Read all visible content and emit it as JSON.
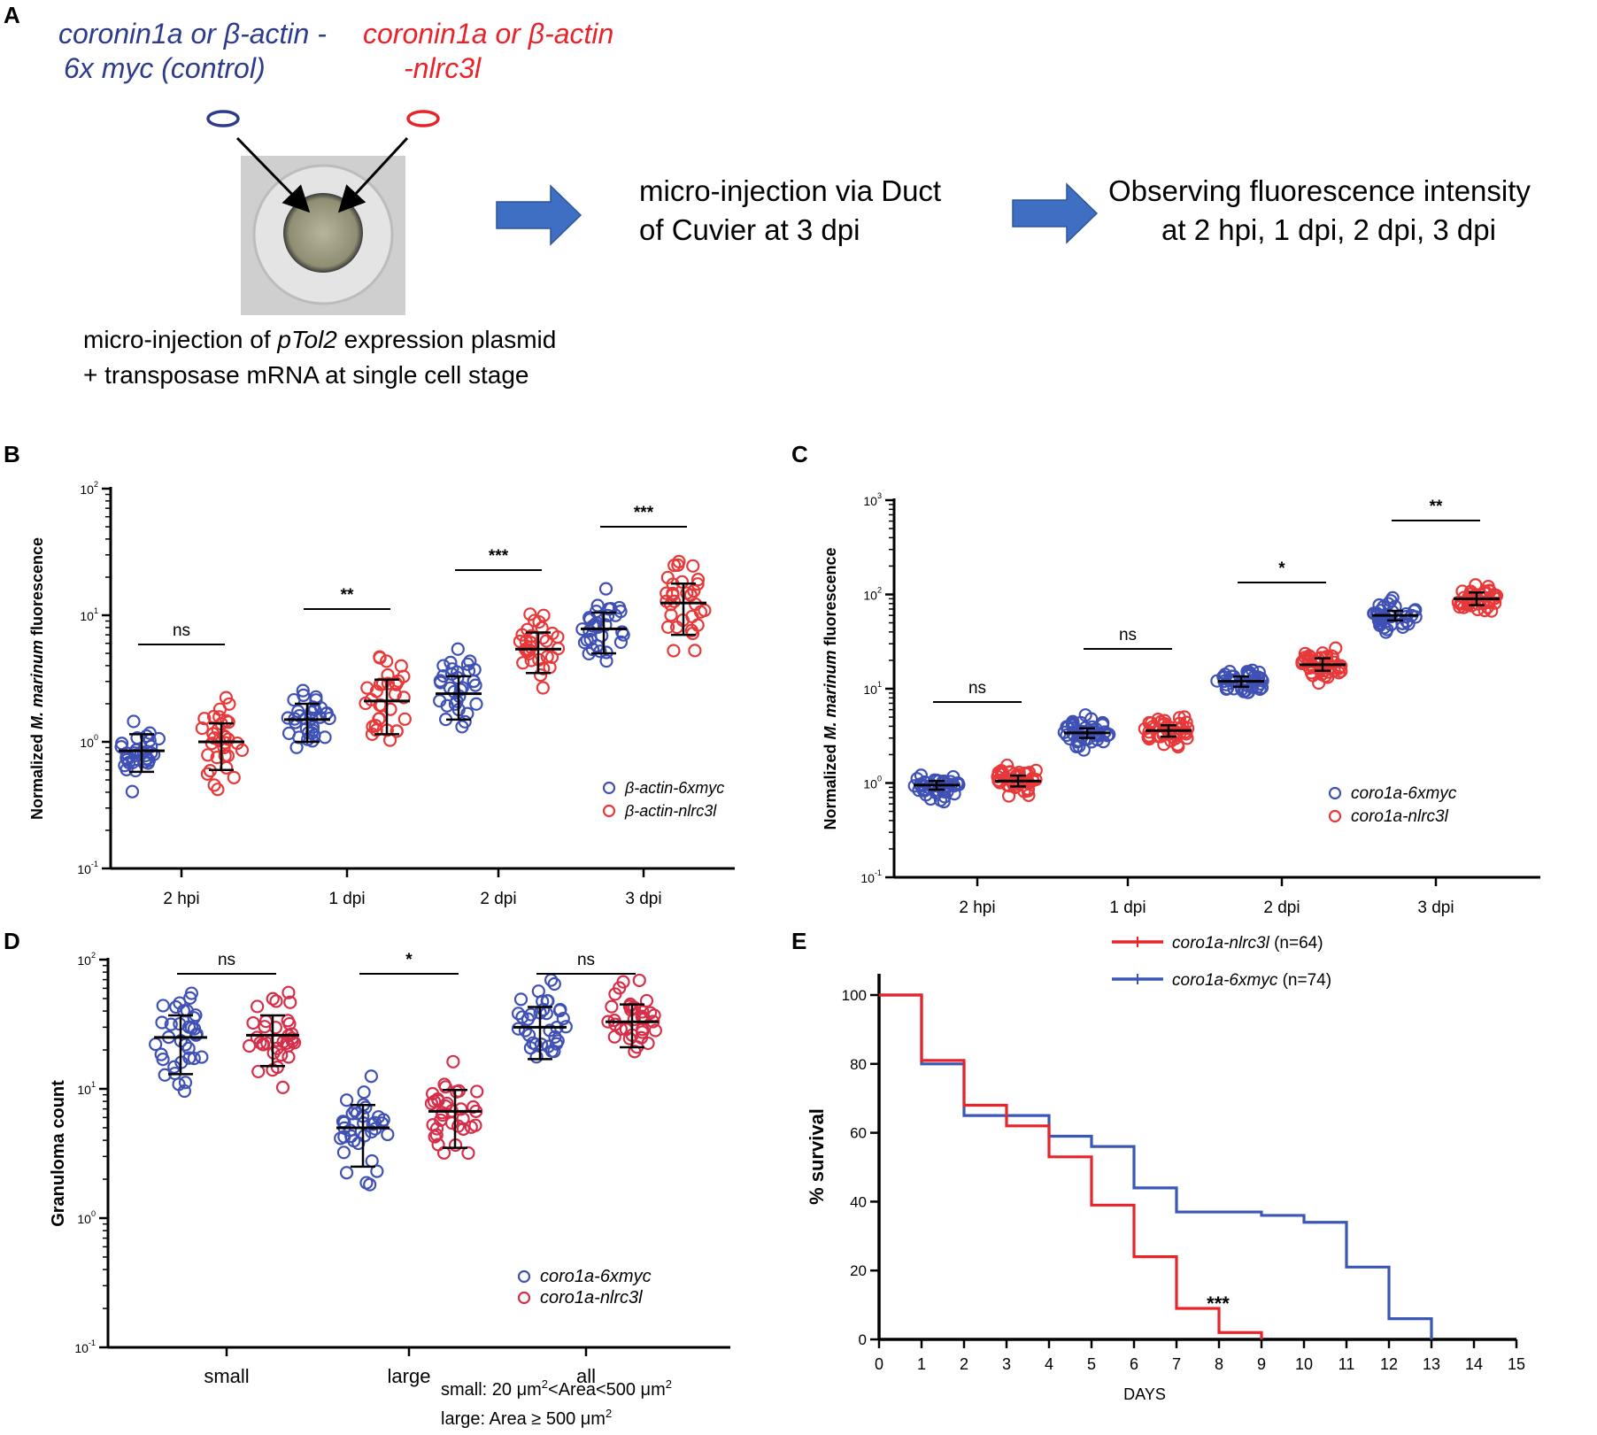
{
  "panel_a": {
    "letter": "A",
    "control_label": [
      "coronin1a or β-actin -",
      "6x myc (control)"
    ],
    "test_label": [
      "coronin1a or β-actin",
      "-nlrc3l"
    ],
    "caption_line1_pre": "micro-injection of ",
    "caption_line1_italic": "pTol2",
    "caption_line1_post": " expression plasmid",
    "caption_line2": "+ transposase mRNA at single cell stage",
    "step2": [
      "micro-injection via Duct",
      "of Cuvier at 3 dpi"
    ],
    "step3": [
      "Observing fluorescence intensity",
      "at 2 hpi, 1 dpi, 2 dpi, 3 dpi"
    ],
    "colors": {
      "blue": "#2e3a8c",
      "red": "#e8242a",
      "arrow": "#3f6fc2"
    }
  },
  "chart_data": [
    {
      "panel": "B",
      "type": "scatter",
      "ylabel_pre": "Normalized ",
      "ylabel_italic": "M. marinum",
      "ylabel_post": " fluorescence",
      "yscale": "log",
      "ylim": [
        0.1,
        100
      ],
      "yticks": [
        {
          "base": "10",
          "exp": "-1"
        },
        {
          "base": "10",
          "exp": "0"
        },
        {
          "base": "10",
          "exp": "1"
        },
        {
          "base": "10",
          "exp": "2"
        }
      ],
      "categories": [
        "2 hpi",
        "1 dpi",
        "2 dpi",
        "3 dpi"
      ],
      "significance": [
        "ns",
        "**",
        "***",
        "***"
      ],
      "series": [
        {
          "name": "β-actin-6xmyc",
          "color": "#3f51b5",
          "means": [
            0.85,
            1.5,
            2.4,
            7.8
          ],
          "err_low": [
            0.58,
            1.0,
            1.5,
            5.0
          ],
          "err_high": [
            1.15,
            2.0,
            3.3,
            10.5
          ]
        },
        {
          "name": "β-actin-nlrc3l",
          "color": "#e8393a",
          "means": [
            1.0,
            2.1,
            5.4,
            12.5
          ],
          "err_low": [
            0.6,
            1.15,
            3.5,
            7.0
          ],
          "err_high": [
            1.4,
            3.1,
            7.3,
            17.8
          ]
        }
      ]
    },
    {
      "panel": "C",
      "type": "scatter",
      "ylabel_pre": "Normalized ",
      "ylabel_italic": "M. marinum",
      "ylabel_post": " fluorescence",
      "yscale": "log",
      "ylim": [
        0.1,
        1000
      ],
      "yticks": [
        {
          "base": "10",
          "exp": "-1"
        },
        {
          "base": "10",
          "exp": "0"
        },
        {
          "base": "10",
          "exp": "1"
        },
        {
          "base": "10",
          "exp": "2"
        },
        {
          "base": "10",
          "exp": "3"
        }
      ],
      "categories": [
        "2 hpi",
        "1 dpi",
        "2 dpi",
        "3 dpi"
      ],
      "significance": [
        "ns",
        "ns",
        "*",
        "**"
      ],
      "series": [
        {
          "name": "coro1a-6xmyc",
          "color": "#3f51b5",
          "means": [
            0.95,
            3.4,
            12.0,
            60
          ],
          "err_low": [
            0.85,
            3.0,
            10.5,
            53
          ],
          "err_high": [
            1.05,
            3.8,
            13.5,
            67
          ]
        },
        {
          "name": "coro1a-nlrc3l",
          "color": "#e8393a",
          "means": [
            1.05,
            3.6,
            18.0,
            90
          ],
          "err_low": [
            0.92,
            3.1,
            15.5,
            77
          ],
          "err_high": [
            1.2,
            4.1,
            21.0,
            105
          ]
        }
      ]
    },
    {
      "panel": "D",
      "type": "scatter",
      "ylabel": "Granuloma count",
      "yscale": "log",
      "ylim": [
        0.1,
        100
      ],
      "yticks": [
        {
          "base": "10",
          "exp": "-1"
        },
        {
          "base": "10",
          "exp": "0"
        },
        {
          "base": "10",
          "exp": "1"
        },
        {
          "base": "10",
          "exp": "2"
        }
      ],
      "categories": [
        "small",
        "large",
        "all"
      ],
      "significance": [
        "ns",
        "*",
        "ns"
      ],
      "series": [
        {
          "name": "coro1a-6xmyc",
          "color": "#3f51b5",
          "means": [
            25,
            5,
            30
          ],
          "err_low": [
            13,
            2.5,
            17
          ],
          "err_high": [
            37,
            7.5,
            43
          ]
        },
        {
          "name": "coro1a-nlrc3l",
          "color": "#d62f4a",
          "means": [
            26,
            6.7,
            33
          ],
          "err_low": [
            15,
            3.5,
            21
          ],
          "err_high": [
            37,
            9.8,
            45
          ]
        }
      ],
      "footnote_small": [
        "small: 20 μm",
        "2",
        "<Area<500 μm",
        "2"
      ],
      "footnote_large": [
        "large:  Area ≥ 500 μm",
        "2"
      ]
    },
    {
      "panel": "E",
      "type": "line",
      "ylabel": "% survival",
      "xlabel": "DAYS",
      "xlim": [
        0,
        15
      ],
      "ylim": [
        0,
        100
      ],
      "xticks": [
        "0",
        "1",
        "2",
        "3",
        "4",
        "5",
        "6",
        "7",
        "8",
        "9",
        "10",
        "11",
        "12",
        "13",
        "14",
        "15"
      ],
      "yticks": [
        "0",
        "20",
        "40",
        "60",
        "80",
        "100"
      ],
      "annotation": "***",
      "series": [
        {
          "name": "coro1a-nlrc3l",
          "n_label": "(n=64)",
          "color": "#e8242a",
          "x": [
            0,
            1,
            1,
            2,
            2,
            3,
            3,
            4,
            4,
            5,
            5,
            6,
            6,
            7,
            7,
            8,
            8,
            9,
            9
          ],
          "y": [
            100,
            100,
            81,
            81,
            68,
            68,
            62,
            62,
            53,
            53,
            39,
            39,
            24,
            24,
            9,
            9,
            2,
            2,
            0
          ]
        },
        {
          "name": "coro1a-6xmyc",
          "n_label": "(n=74)",
          "color": "#3a57b8",
          "x": [
            0,
            1,
            1,
            2,
            2,
            4,
            4,
            5,
            5,
            6,
            6,
            7,
            7,
            9,
            9,
            10,
            10,
            11,
            11,
            12,
            12,
            13,
            13
          ],
          "y": [
            100,
            100,
            80,
            80,
            65,
            65,
            59,
            59,
            56,
            56,
            44,
            44,
            37,
            37,
            36,
            36,
            34,
            34,
            21,
            21,
            6,
            6,
            0
          ]
        }
      ]
    }
  ]
}
